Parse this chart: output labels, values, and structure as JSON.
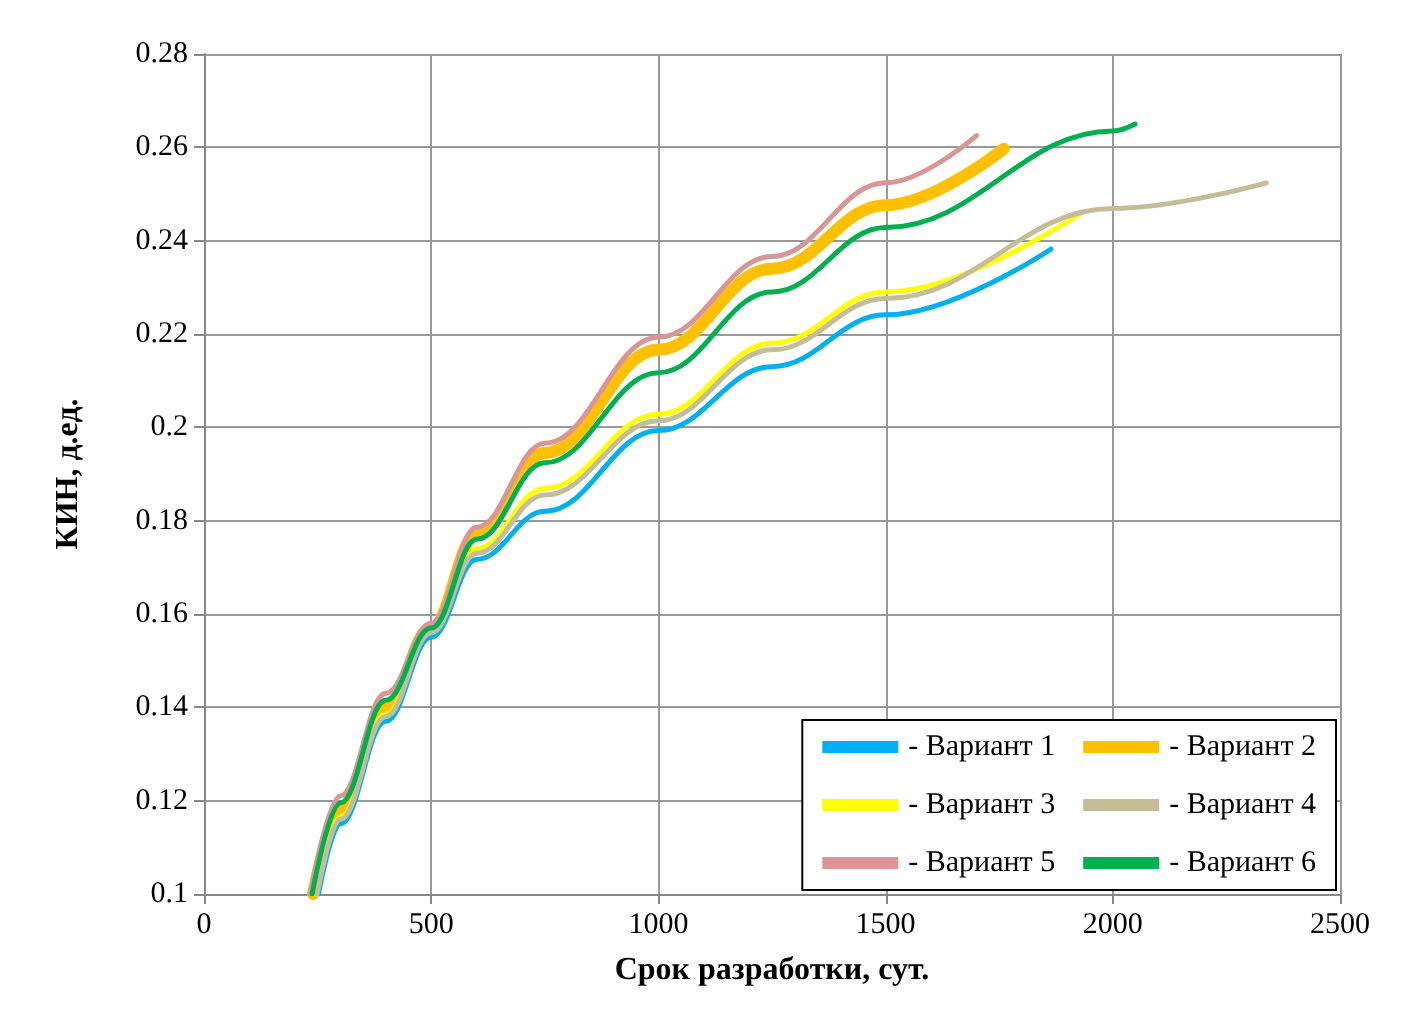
{
  "chart_data": {
    "type": "line",
    "xlabel": "Срок разработки, сут.",
    "ylabel": "КИН, д.ед.",
    "xlim": [
      0,
      2500
    ],
    "xticks": [
      0,
      500,
      1000,
      1500,
      2000,
      2500
    ],
    "ylim": [
      0.1,
      0.28
    ],
    "yticks": [
      0.1,
      0.12,
      0.14,
      0.16,
      0.18,
      0.2,
      0.22,
      0.24,
      0.26,
      0.28
    ],
    "grid": true,
    "legend": "bottom right",
    "marker": "none",
    "line_style": "solid",
    "series": [
      {
        "name": "- Вариант 1",
        "color": "#00b0f0",
        "x": [
          252,
          300,
          400,
          500,
          600,
          750,
          1000,
          1250,
          1500,
          1864
        ],
        "values": [
          0.1,
          0.115,
          0.137,
          0.155,
          0.1717,
          0.182,
          0.1993,
          0.213,
          0.2241,
          0.2382
        ]
      },
      {
        "name": "- Вариант 2",
        "color": "#ffc000",
        "x": [
          240,
          300,
          400,
          500,
          600,
          750,
          1000,
          1250,
          1500,
          1760
        ],
        "values": [
          0.1,
          0.118,
          0.14,
          0.157,
          0.177,
          0.1945,
          0.2166,
          0.234,
          0.2476,
          0.2597
        ]
      },
      {
        "name": "- Вариант 3",
        "color": "#ffff00",
        "x": [
          246,
          300,
          400,
          500,
          600,
          750,
          1000,
          1250,
          1500,
          1929
        ],
        "values": [
          0.1,
          0.1165,
          0.1385,
          0.157,
          0.174,
          0.1869,
          0.2028,
          0.218,
          0.229,
          0.2459
        ]
      },
      {
        "name": "- Вариант 4",
        "color": "#c4bd97",
        "x": [
          249,
          300,
          400,
          500,
          600,
          750,
          1000,
          1250,
          1500,
          2000,
          2338
        ],
        "values": [
          0.1,
          0.116,
          0.138,
          0.156,
          0.173,
          0.1855,
          0.2014,
          0.2166,
          0.2276,
          0.2469,
          0.2524
        ]
      },
      {
        "name": "- Вариант 5",
        "color": "#d99694",
        "x": [
          234,
          300,
          400,
          500,
          600,
          750,
          1000,
          1250,
          1500,
          1700
        ],
        "values": [
          0.1,
          0.121,
          0.143,
          0.158,
          0.1786,
          0.1966,
          0.2193,
          0.2366,
          0.2524,
          0.2625
        ]
      },
      {
        "name": "- Вариант 6",
        "color": "#00b050",
        "x": [
          238,
          300,
          400,
          500,
          600,
          750,
          1000,
          1250,
          1500,
          2000,
          2049
        ],
        "values": [
          0.1,
          0.1195,
          0.1415,
          0.157,
          0.176,
          0.1924,
          0.2117,
          0.229,
          0.2428,
          0.2635,
          0.265
        ]
      }
    ]
  }
}
